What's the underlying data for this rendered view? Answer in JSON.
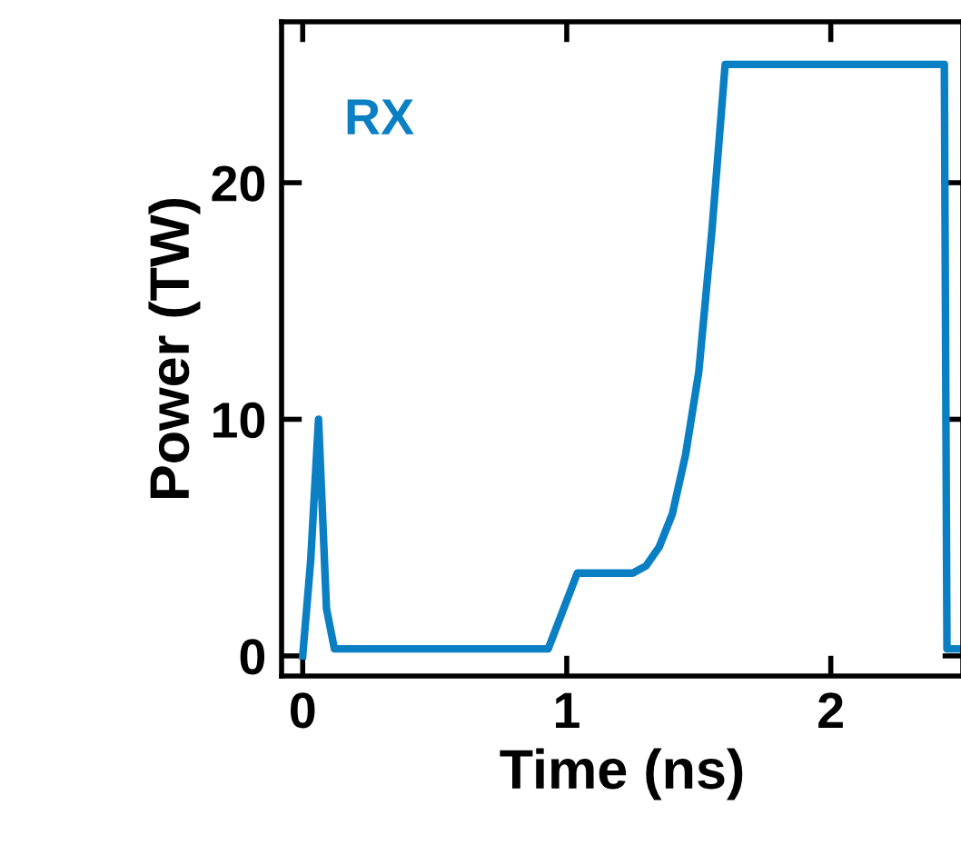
{
  "chart_data": {
    "type": "line",
    "xlabel": "Time (ns)",
    "ylabel": "Power (TW)",
    "xlim": [
      -0.08,
      2.5
    ],
    "ylim": [
      -0.85,
      26.8
    ],
    "xticks": [
      0,
      1,
      2
    ],
    "yticks": [
      0,
      10,
      20
    ],
    "grid": false,
    "legend": false,
    "marker": "none",
    "line_style": "solid",
    "series": [
      {
        "name": "RX",
        "color": "#0a7fc4",
        "x": [
          0.0,
          0.03,
          0.06,
          0.09,
          0.12,
          0.5,
          0.93,
          1.04,
          1.25,
          1.3,
          1.35,
          1.4,
          1.45,
          1.5,
          1.55,
          1.6,
          2.43,
          2.44,
          2.5
        ],
        "values": [
          0,
          4,
          10,
          2,
          0.3,
          0.3,
          0.3,
          3.5,
          3.5,
          3.8,
          4.6,
          6,
          8.5,
          12,
          18,
          25,
          25,
          0.3,
          0.3
        ]
      }
    ]
  }
}
